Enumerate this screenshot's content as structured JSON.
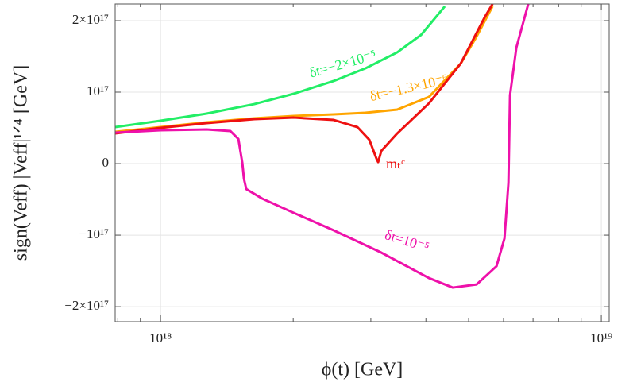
{
  "chart_data": {
    "type": "line",
    "x_label": "ϕ(t) [GeV]",
    "y_label": "sign(Veff) |Veff|¹ᐟ⁴ [GeV]",
    "x_log": true,
    "grid": true,
    "xlim": [
      7.89e+17,
      1.042e+19
    ],
    "ylim": [
      -2.21e+17,
      2.233e+17
    ],
    "xticks": [
      {
        "value": 1e+18,
        "label": "10¹⁸"
      },
      {
        "value": 1e+19,
        "label": "10¹⁹"
      }
    ],
    "xminorticks": [
      8e+17,
      9e+17,
      2e+18,
      3e+18,
      4e+18,
      5e+18,
      6e+18,
      7e+18,
      8e+18,
      9e+18
    ],
    "yticks": [
      {
        "value": -2e+17,
        "label": "−2×10¹⁷"
      },
      {
        "value": -1e+17,
        "label": "−10¹⁷"
      },
      0,
      {
        "value": 1e+17,
        "label": "10¹⁷"
      },
      {
        "value": 2e+17,
        "label": "2×10¹⁷"
      }
    ],
    "series": [
      {
        "name": "δt=−2×10⁻⁵",
        "color": "#22ee66",
        "x": [
          7.89e+17,
          1e+18,
          1.272e+18,
          1.632e+18,
          2.007e+18,
          2.471e+18,
          2.916e+18,
          3.443e+18,
          3.899e+18,
          4.416e+18
        ],
        "values": [
          5.11e+16,
          6e+16,
          7e+16,
          8.33e+16,
          9.78e+16,
          1.156e+17,
          1.333e+17,
          1.556e+17,
          1.8e+17,
          2.2e+17
        ]
      },
      {
        "name": "δt=−1.3×10⁻⁶",
        "color": "#ffa500",
        "x": [
          7.89e+17,
          1e+18,
          1.272e+18,
          1.632e+18,
          2.007e+18,
          2.471e+18,
          2.916e+18,
          3.443e+18,
          4.064e+18,
          4.798e+18,
          5.213e+18,
          5.666e+18
        ],
        "values": [
          4.44e+16,
          5.11e+16,
          5.78e+16,
          6.33e+16,
          6.67e+16,
          6.89e+16,
          7.11e+16,
          7.56e+16,
          9.33e+16,
          1.4e+17,
          1.778e+17,
          2.2e+17
        ]
      },
      {
        "name": "mₜᶜ",
        "color": "#ee1111",
        "x": [
          7.89e+17,
          1e+18,
          1.272e+18,
          1.632e+18,
          2.007e+18,
          2.471e+18,
          2.797e+18,
          2.977e+18,
          3.091e+18,
          3.117e+18,
          3.169e+18,
          3.443e+18,
          4.064e+18,
          4.798e+18,
          5.434e+18,
          5.666e+18
        ],
        "values": [
          4.22e+16,
          5e+16,
          5.67e+16,
          6.22e+16,
          6.44e+16,
          6.11e+16,
          5.11e+16,
          3.33e+16,
          6700000000000000.0,
          2200000000000000.0,
          1.78e+16,
          4.22e+16,
          8.44e+16,
          1.4e+17,
          2.044e+17,
          2.233e+17
        ]
      },
      {
        "name": "δt=10⁻⁵",
        "color": "#ee11aa",
        "x": [
          7.89e+17,
          1e+18,
          1.272e+18,
          1.44e+18,
          1.502e+18,
          1.533e+18,
          1.546e+18,
          1.565e+18,
          1.701e+18,
          2.007e+18,
          2.471e+18,
          3.169e+18,
          4.064e+18,
          4.603e+18,
          5.213e+18,
          5.785e+18,
          6.03e+18,
          6.156e+18,
          6.207e+18,
          6.416e+18,
          6.828e+18
        ],
        "values": [
          4.33e+16,
          4.67e+16,
          4.78e+16,
          4.56e+16,
          3.44e+16,
          1100000000000000.0,
          -2.11e+16,
          -3.56e+16,
          -4.89e+16,
          -6.89e+16,
          -9.33e+16,
          -1.244e+17,
          -1.6e+17,
          -1.733e+17,
          -1.689e+17,
          -1.433e+17,
          -1.044e+17,
          -2.67e+16,
          9.56e+16,
          1.622e+17,
          2.233e+17
        ]
      }
    ]
  }
}
